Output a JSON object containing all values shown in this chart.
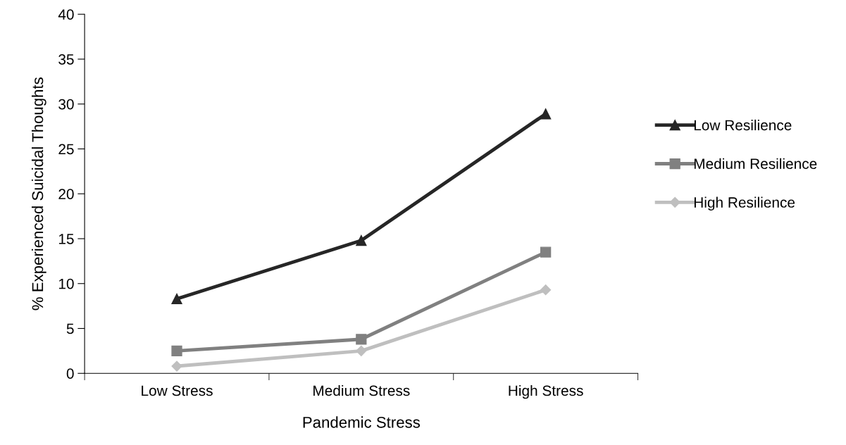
{
  "chart_data": {
    "type": "line",
    "xlabel": "Pandemic Stress",
    "ylabel": "% Experienced Suicidal Thoughts",
    "categories": [
      "Low Stress",
      "Medium Stress",
      "High Stress"
    ],
    "series": [
      {
        "name": "Low Resilience",
        "color": "#262626",
        "marker": "triangle",
        "values": [
          8.3,
          14.8,
          28.9
        ]
      },
      {
        "name": "Medium Resilience",
        "color": "#808080",
        "marker": "square",
        "values": [
          2.5,
          3.8,
          13.5
        ]
      },
      {
        "name": "High Resilience",
        "color": "#bfbfbf",
        "marker": "diamond",
        "values": [
          0.8,
          2.5,
          9.3
        ]
      }
    ],
    "ylim": [
      0,
      40
    ],
    "yticks": [
      0,
      5,
      10,
      15,
      20,
      25,
      30,
      35,
      40
    ],
    "grid": false,
    "legend": "right",
    "line_style": "solid"
  }
}
